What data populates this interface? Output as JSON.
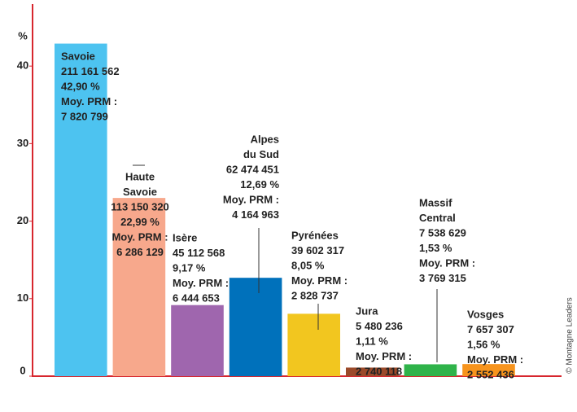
{
  "chart_data": {
    "type": "bar",
    "y_label": "%",
    "categories": [
      [
        "Savoie"
      ],
      [
        "Haute",
        "Savoie"
      ],
      [
        "Isère"
      ],
      [
        "Alpes",
        "du Sud"
      ],
      [
        "Pyrénées"
      ],
      [
        "Jura"
      ],
      [
        "Massif",
        "Central"
      ],
      [
        "Vosges"
      ]
    ],
    "values": [
      42.9,
      22.99,
      9.17,
      12.69,
      8.05,
      1.11,
      1.53,
      1.56
    ],
    "value_labels": [
      "42,90 %",
      "22,99 %",
      "9,17 %",
      "12,69 %",
      "8,05 %",
      "1,11 %",
      "1,53 %",
      "1,56 %"
    ],
    "amounts": [
      "211 161 562",
      "113 150 320",
      "45 112 568",
      "62 474 451",
      "39 602 317",
      "5 480 236",
      "7 538 629",
      "7 657 307"
    ],
    "prm_label": "Moy. PRM :",
    "prm_values": [
      "7 820 799",
      "6 286 129",
      "6 444 653",
      "4 164 963",
      "2 828 737",
      "2 740 118",
      "3 769 315",
      "2 552 436"
    ],
    "colors": [
      "#4dc3f0",
      "#f7a88c",
      "#9f66ae",
      "#0071bb",
      "#f2c61f",
      "#9b4a2a",
      "#2fb34a",
      "#f7941d"
    ],
    "ylim": [
      0,
      48
    ],
    "yticks": [
      0,
      10,
      20,
      30,
      40
    ],
    "grid": false,
    "credit": "© Montagne Leaders"
  }
}
